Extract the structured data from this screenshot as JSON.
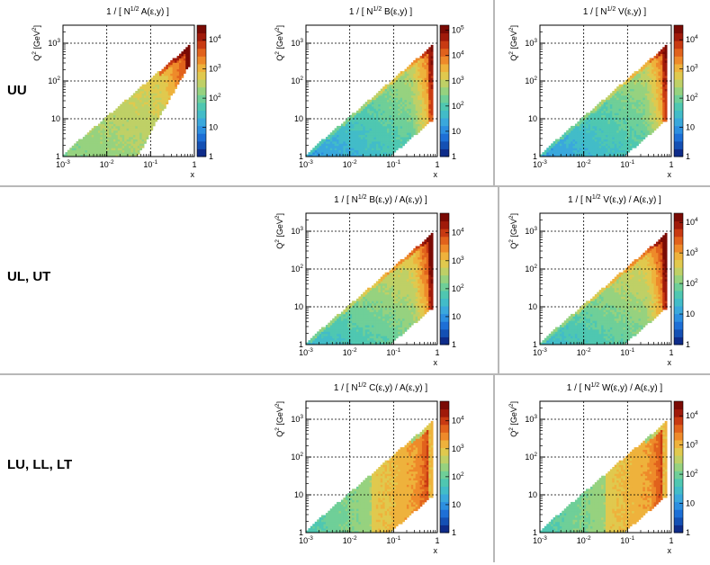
{
  "row_labels": [
    "UU",
    "UL, UT",
    "LU, LL, LT"
  ],
  "colors": {
    "palette": [
      "#0e2c8a",
      "#1450b4",
      "#1d6fd6",
      "#2c8fe0",
      "#3aa8dc",
      "#42bcc8",
      "#4fc7b1",
      "#6fcf98",
      "#96d27f",
      "#bfd066",
      "#e0c94e",
      "#eeb23c",
      "#ee8a2a",
      "#e1621c",
      "#c83a12",
      "#a01a0a",
      "#7a0a04"
    ],
    "separator": "#b8b8b8",
    "grid": "#000000"
  },
  "chart_data": [
    {
      "type": "heatmap",
      "title_prefix": "1 / [ N",
      "title_sup": "1/2",
      "title_suffix": " A(ε,y) ]",
      "xlabel": "x",
      "ylabel": "Q",
      "ylabel_sup": "2",
      "ylabel_unit": " [GeV",
      "ylabel_unit_sup": "2",
      "ylabel_close": "]",
      "xscale": "log",
      "yscale": "log",
      "xlim": [
        0.001,
        1
      ],
      "ylim": [
        1,
        3000
      ],
      "x_ticks": [
        {
          "base": "10",
          "exp": "-3"
        },
        {
          "base": "10",
          "exp": "-2"
        },
        {
          "base": "10",
          "exp": "-1"
        },
        {
          "base": "1",
          "exp": ""
        }
      ],
      "y_ticks": [
        {
          "base": "1",
          "exp": ""
        },
        {
          "base": "10",
          "exp": ""
        },
        {
          "base": "10",
          "exp": "2"
        },
        {
          "base": "10",
          "exp": "3"
        }
      ],
      "z_ticks": [
        {
          "base": "1",
          "exp": ""
        },
        {
          "base": "10",
          "exp": ""
        },
        {
          "base": "10",
          "exp": "2"
        },
        {
          "base": "10",
          "exp": "3"
        },
        {
          "base": "10",
          "exp": "4"
        }
      ],
      "zlim_log": [
        0,
        4.5
      ],
      "grid": true,
      "pattern": "A"
    },
    {
      "type": "heatmap",
      "title_prefix": "1 / [ N",
      "title_sup": "1/2",
      "title_suffix": " B(ε,y) ]",
      "xlabel": "x",
      "ylabel": "Q",
      "ylabel_sup": "2",
      "ylabel_unit": " [GeV",
      "ylabel_unit_sup": "2",
      "ylabel_close": "]",
      "xscale": "log",
      "yscale": "log",
      "xlim": [
        0.001,
        1
      ],
      "ylim": [
        1,
        3000
      ],
      "x_ticks": [
        {
          "base": "10",
          "exp": "-3"
        },
        {
          "base": "10",
          "exp": "-2"
        },
        {
          "base": "10",
          "exp": "-1"
        },
        {
          "base": "1",
          "exp": ""
        }
      ],
      "y_ticks": [
        {
          "base": "1",
          "exp": ""
        },
        {
          "base": "10",
          "exp": ""
        },
        {
          "base": "10",
          "exp": "2"
        },
        {
          "base": "10",
          "exp": "3"
        }
      ],
      "z_ticks": [
        {
          "base": "1",
          "exp": ""
        },
        {
          "base": "10",
          "exp": ""
        },
        {
          "base": "10",
          "exp": "2"
        },
        {
          "base": "10",
          "exp": "3"
        },
        {
          "base": "10",
          "exp": "4"
        },
        {
          "base": "10",
          "exp": "5"
        }
      ],
      "zlim_log": [
        0,
        5.2
      ],
      "grid": true,
      "pattern": "B"
    },
    {
      "type": "heatmap",
      "title_prefix": "1 / [ N",
      "title_sup": "1/2",
      "title_suffix": " V(ε,y) ]",
      "xlabel": "x",
      "ylabel": "Q",
      "ylabel_sup": "2",
      "ylabel_unit": " [GeV",
      "ylabel_unit_sup": "2",
      "ylabel_close": "]",
      "xscale": "log",
      "yscale": "log",
      "xlim": [
        0.001,
        1
      ],
      "ylim": [
        1,
        3000
      ],
      "x_ticks": [
        {
          "base": "10",
          "exp": "-3"
        },
        {
          "base": "10",
          "exp": "-2"
        },
        {
          "base": "10",
          "exp": "-1"
        },
        {
          "base": "1",
          "exp": ""
        }
      ],
      "y_ticks": [
        {
          "base": "1",
          "exp": ""
        },
        {
          "base": "10",
          "exp": ""
        },
        {
          "base": "10",
          "exp": "2"
        },
        {
          "base": "10",
          "exp": "3"
        }
      ],
      "z_ticks": [
        {
          "base": "1",
          "exp": ""
        },
        {
          "base": "10",
          "exp": ""
        },
        {
          "base": "10",
          "exp": "2"
        },
        {
          "base": "10",
          "exp": "3"
        },
        {
          "base": "10",
          "exp": "4"
        }
      ],
      "zlim_log": [
        0,
        4.5
      ],
      "grid": true,
      "pattern": "B"
    },
    {
      "type": "heatmap",
      "title_prefix": "1 / [ N",
      "title_sup": "1/2",
      "title_suffix": " B(ε,y) / A(ε,y) ]",
      "xlabel": "x",
      "ylabel": "Q",
      "ylabel_sup": "2",
      "ylabel_unit": " [GeV",
      "ylabel_unit_sup": "2",
      "ylabel_close": "]",
      "xscale": "log",
      "yscale": "log",
      "xlim": [
        0.001,
        1
      ],
      "ylim": [
        1,
        3000
      ],
      "x_ticks": [
        {
          "base": "10",
          "exp": "-3"
        },
        {
          "base": "10",
          "exp": "-2"
        },
        {
          "base": "10",
          "exp": "-1"
        },
        {
          "base": "1",
          "exp": ""
        }
      ],
      "y_ticks": [
        {
          "base": "1",
          "exp": ""
        },
        {
          "base": "10",
          "exp": ""
        },
        {
          "base": "10",
          "exp": "2"
        },
        {
          "base": "10",
          "exp": "3"
        }
      ],
      "z_ticks": [
        {
          "base": "1",
          "exp": ""
        },
        {
          "base": "10",
          "exp": ""
        },
        {
          "base": "10",
          "exp": "2"
        },
        {
          "base": "10",
          "exp": "3"
        },
        {
          "base": "10",
          "exp": "4"
        }
      ],
      "zlim_log": [
        0,
        4.7
      ],
      "grid": true,
      "pattern": "R"
    },
    {
      "type": "heatmap",
      "title_prefix": "1 / [ N",
      "title_sup": "1/2",
      "title_suffix": " V(ε,y) / A(ε,y) ]",
      "xlabel": "x",
      "ylabel": "Q",
      "ylabel_sup": "2",
      "ylabel_unit": " [GeV",
      "ylabel_unit_sup": "2",
      "ylabel_close": "]",
      "xscale": "log",
      "yscale": "log",
      "xlim": [
        0.001,
        1
      ],
      "ylim": [
        1,
        3000
      ],
      "x_ticks": [
        {
          "base": "10",
          "exp": "-3"
        },
        {
          "base": "10",
          "exp": "-2"
        },
        {
          "base": "10",
          "exp": "-1"
        },
        {
          "base": "1",
          "exp": ""
        }
      ],
      "y_ticks": [
        {
          "base": "1",
          "exp": ""
        },
        {
          "base": "10",
          "exp": ""
        },
        {
          "base": "10",
          "exp": "2"
        },
        {
          "base": "10",
          "exp": "3"
        }
      ],
      "z_ticks": [
        {
          "base": "1",
          "exp": ""
        },
        {
          "base": "10",
          "exp": ""
        },
        {
          "base": "10",
          "exp": "2"
        },
        {
          "base": "10",
          "exp": "3"
        },
        {
          "base": "10",
          "exp": "4"
        }
      ],
      "zlim_log": [
        0,
        4.3
      ],
      "grid": true,
      "pattern": "R"
    },
    {
      "type": "heatmap",
      "title_prefix": "1 / [ N",
      "title_sup": "1/2",
      "title_suffix": " C(ε,y) / A(ε,y) ]",
      "xlabel": "x",
      "ylabel": "Q",
      "ylabel_sup": "2",
      "ylabel_unit": " [GeV",
      "ylabel_unit_sup": "2",
      "ylabel_close": "]",
      "xscale": "log",
      "yscale": "log",
      "xlim": [
        0.001,
        1
      ],
      "ylim": [
        1,
        3000
      ],
      "x_ticks": [
        {
          "base": "10",
          "exp": "-3"
        },
        {
          "base": "10",
          "exp": "-2"
        },
        {
          "base": "10",
          "exp": "-1"
        },
        {
          "base": "1",
          "exp": ""
        }
      ],
      "y_ticks": [
        {
          "base": "1",
          "exp": ""
        },
        {
          "base": "10",
          "exp": ""
        },
        {
          "base": "10",
          "exp": "2"
        },
        {
          "base": "10",
          "exp": "3"
        }
      ],
      "z_ticks": [
        {
          "base": "1",
          "exp": ""
        },
        {
          "base": "10",
          "exp": ""
        },
        {
          "base": "10",
          "exp": "2"
        },
        {
          "base": "10",
          "exp": "3"
        },
        {
          "base": "10",
          "exp": "4"
        }
      ],
      "zlim_log": [
        0,
        4.7
      ],
      "grid": true,
      "pattern": "C"
    },
    {
      "type": "heatmap",
      "title_prefix": "1 / [ N",
      "title_sup": "1/2",
      "title_suffix": " W(ε,y) / A(ε,y) ]",
      "xlabel": "x",
      "ylabel": "Q",
      "ylabel_sup": "2",
      "ylabel_unit": " [GeV",
      "ylabel_unit_sup": "2",
      "ylabel_close": "]",
      "xscale": "log",
      "yscale": "log",
      "xlim": [
        0.001,
        1
      ],
      "ylim": [
        1,
        3000
      ],
      "x_ticks": [
        {
          "base": "10",
          "exp": "-3"
        },
        {
          "base": "10",
          "exp": "-2"
        },
        {
          "base": "10",
          "exp": "-1"
        },
        {
          "base": "1",
          "exp": ""
        }
      ],
      "y_ticks": [
        {
          "base": "1",
          "exp": ""
        },
        {
          "base": "10",
          "exp": ""
        },
        {
          "base": "10",
          "exp": "2"
        },
        {
          "base": "10",
          "exp": "3"
        }
      ],
      "z_ticks": [
        {
          "base": "1",
          "exp": ""
        },
        {
          "base": "10",
          "exp": ""
        },
        {
          "base": "10",
          "exp": "2"
        },
        {
          "base": "10",
          "exp": "3"
        },
        {
          "base": "10",
          "exp": "4"
        }
      ],
      "zlim_log": [
        0,
        4.5
      ],
      "grid": true,
      "pattern": "C"
    }
  ]
}
